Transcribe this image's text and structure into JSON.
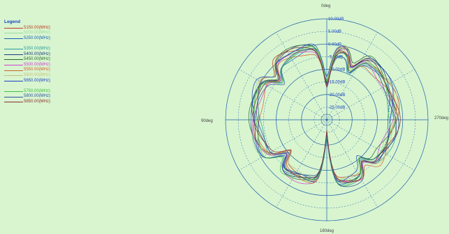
{
  "chart_data": {
    "type": "polar",
    "legend_title": "Legend",
    "series": [
      {
        "name": "5150.00(MHz)",
        "color": "#c03a20"
      },
      {
        "name": "5200.00(MHz)",
        "color": "#a0d8a0"
      },
      {
        "name": "5250.00(MHz)",
        "color": "#1a5fb0"
      },
      {
        "name": null
      },
      {
        "name": "5350.00(MHz)",
        "color": "#2b9b9b"
      },
      {
        "name": "5400.00(MHz)",
        "color": "#1d3a80"
      },
      {
        "name": "5450.00(MHz)",
        "color": "#2a6a2a"
      },
      {
        "name": "5500.00(MHz)",
        "color": "#d040d0"
      },
      {
        "name": "5550.00(MHz)",
        "color": "#d06030"
      },
      {
        "name": "5600.00(MHz)",
        "color": "#c8c080"
      },
      {
        "name": "5650.00(MHz)",
        "color": "#1a40c0"
      },
      {
        "name": null
      },
      {
        "name": "5750.00(MHz)",
        "color": "#40c040"
      },
      {
        "name": "5800.00(MHz)",
        "color": "#3050a0"
      },
      {
        "name": "5850.00(MHz)",
        "color": "#8a3030"
      }
    ],
    "angle_labels": {
      "top": "0deg",
      "left": "90deg",
      "right": "270deg",
      "bottom": "180deg"
    },
    "radial_labels": [
      "10.00dB",
      "5.00dB",
      "0.00dB",
      "-5.00dB",
      "-10.00dB",
      "-15.00dB",
      "-20.00dB",
      "-25.00dB"
    ],
    "radial_range": [
      -30,
      10
    ],
    "colors": {
      "background": "#d8f5d0",
      "grid": "#1f5fa8",
      "axis": "#444444",
      "label": "#1b46c8"
    }
  }
}
